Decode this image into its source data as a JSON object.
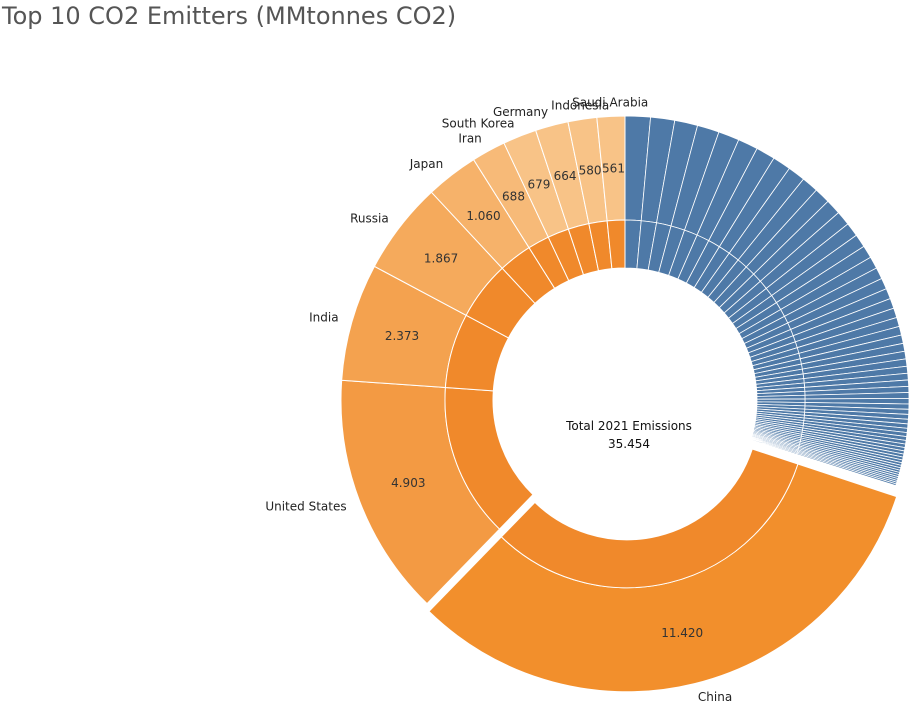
{
  "title": "Top 10 CO2 Emitters (MMtonnes CO2)",
  "center": {
    "label": "Total 2021 Emissions",
    "value": "35.454"
  },
  "colors": {
    "orange_outer": "#f28f2c",
    "orange_inner": "#f0892b",
    "blue_rest": "#4e79a7",
    "shades": [
      "#f28f2c",
      "#f39a43",
      "#f4a24f",
      "#f5aa5c",
      "#f6b26a",
      "#f7ba78",
      "#f8c387"
    ]
  },
  "chart_data": {
    "type": "pie",
    "subtype": "nested-donut",
    "total": 35454,
    "categories": [
      "China",
      "United States",
      "India",
      "Russia",
      "Japan",
      "Iran",
      "South Korea",
      "Germany",
      "Indonesia",
      "Saudi Arabia"
    ],
    "values": [
      11420,
      4903,
      2373,
      1867,
      1060,
      688,
      679,
      664,
      580,
      561
    ],
    "value_labels": [
      "11.420",
      "4.903",
      "2.373",
      "1.867",
      "1.060",
      "688",
      "679",
      "664",
      "580",
      "561"
    ],
    "remaining_emitters": {
      "value": 10659,
      "label": "",
      "color": "#4e79a7"
    },
    "exploded_slice": "China",
    "legend": "none"
  }
}
